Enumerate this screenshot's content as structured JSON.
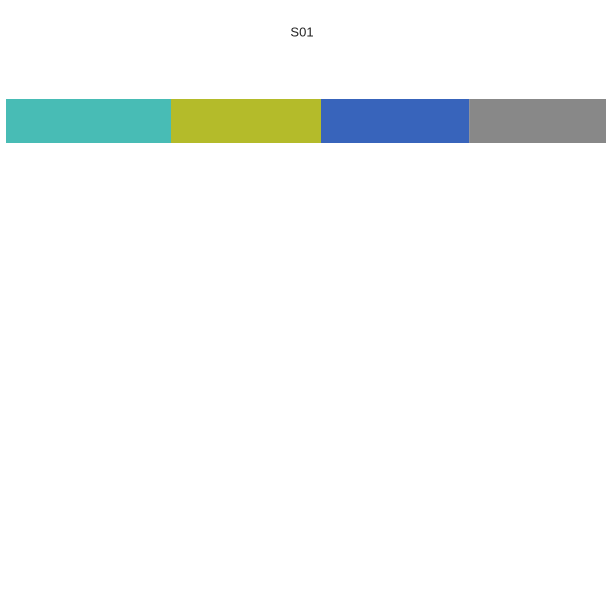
{
  "chart_data": {
    "type": "bar",
    "orientation": "horizontal",
    "stacked": true,
    "title": "S01",
    "categories": [
      null
    ],
    "series": [
      {
        "color": "#48bcb5",
        "values": [
          27.5
        ]
      },
      {
        "color": "#b4bb2a",
        "values": [
          25
        ]
      },
      {
        "color": "#3864bb",
        "values": [
          24.7
        ]
      },
      {
        "color": "#888888",
        "values": [
          22.8
        ]
      }
    ],
    "xlim": [
      0,
      100
    ]
  }
}
